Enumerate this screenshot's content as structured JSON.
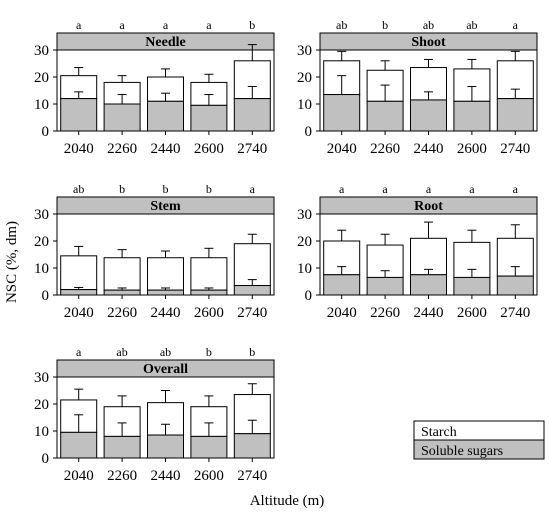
{
  "axis_titles": {
    "y": "NSC (%, dm)",
    "x": "Altitude (m)"
  },
  "legend": {
    "items": [
      {
        "label": "Starch",
        "color": "#ffffff"
      },
      {
        "label": "Soluble sugars",
        "color": "#c0c0c0"
      }
    ]
  },
  "colors": {
    "starch": "#ffffff",
    "soluble_sugars": "#c0c0c0",
    "strip": "#c0c0c0"
  },
  "chart_data": [
    {
      "type": "bar",
      "stacked": true,
      "title": "Needle",
      "categories": [
        "2040",
        "2260",
        "2440",
        "2600",
        "2740"
      ],
      "ylim": [
        0,
        30
      ],
      "yticks": [
        0,
        10,
        20,
        30
      ],
      "series": [
        {
          "name": "Soluble sugars",
          "values": [
            12,
            10,
            11,
            9.5,
            12
          ],
          "error": [
            2.5,
            3.5,
            3,
            4,
            4.5
          ]
        },
        {
          "name": "Starch",
          "values": [
            8.5,
            8,
            9,
            8.5,
            14
          ],
          "error": [
            3,
            2.5,
            3,
            3,
            6
          ]
        }
      ],
      "letters": [
        "a",
        "a",
        "a",
        "a",
        "b"
      ]
    },
    {
      "type": "bar",
      "stacked": true,
      "title": "Shoot",
      "categories": [
        "2040",
        "2260",
        "2440",
        "2600",
        "2740"
      ],
      "ylim": [
        0,
        30
      ],
      "yticks": [
        0,
        10,
        20,
        30
      ],
      "series": [
        {
          "name": "Soluble sugars",
          "values": [
            13.5,
            11,
            11.5,
            11,
            12
          ],
          "error": [
            7,
            6,
            3,
            5.5,
            3.5
          ]
        },
        {
          "name": "Starch",
          "values": [
            12.5,
            11.5,
            12,
            12,
            14
          ],
          "error": [
            3.5,
            3.5,
            3,
            3.5,
            3.5
          ]
        }
      ],
      "letters": [
        "ab",
        "b",
        "ab",
        "ab",
        "a"
      ]
    },
    {
      "type": "bar",
      "stacked": true,
      "title": "Stem",
      "categories": [
        "2040",
        "2260",
        "2440",
        "2600",
        "2740"
      ],
      "ylim": [
        0,
        30
      ],
      "yticks": [
        0,
        10,
        20,
        30
      ],
      "series": [
        {
          "name": "Soluble sugars",
          "values": [
            2,
            1.8,
            1.8,
            1.8,
            3.5
          ],
          "error": [
            0.8,
            0.8,
            0.8,
            0.8,
            2.2
          ]
        },
        {
          "name": "Starch",
          "values": [
            12.5,
            12,
            12,
            12,
            15.5
          ],
          "error": [
            3.5,
            3,
            2.5,
            3.5,
            3.5
          ]
        }
      ],
      "letters": [
        "ab",
        "b",
        "b",
        "b",
        "a"
      ]
    },
    {
      "type": "bar",
      "stacked": true,
      "title": "Root",
      "categories": [
        "2040",
        "2260",
        "2440",
        "2600",
        "2740"
      ],
      "ylim": [
        0,
        30
      ],
      "yticks": [
        0,
        10,
        20,
        30
      ],
      "series": [
        {
          "name": "Soluble sugars",
          "values": [
            7.5,
            6.5,
            7.5,
            6.5,
            7
          ],
          "error": [
            3,
            2.5,
            2,
            3,
            3.5
          ]
        },
        {
          "name": "Starch",
          "values": [
            12.5,
            12,
            13.5,
            13,
            14
          ],
          "error": [
            4,
            4,
            6,
            4.5,
            5
          ]
        }
      ],
      "letters": [
        "a",
        "a",
        "a",
        "a",
        "a"
      ]
    },
    {
      "type": "bar",
      "stacked": true,
      "title": "Overall",
      "categories": [
        "2040",
        "2260",
        "2440",
        "2600",
        "2740"
      ],
      "ylim": [
        0,
        30
      ],
      "yticks": [
        0,
        10,
        20,
        30
      ],
      "series": [
        {
          "name": "Soluble sugars",
          "values": [
            9.5,
            8,
            8.5,
            8,
            9
          ],
          "error": [
            6.5,
            5,
            4,
            5,
            5
          ]
        },
        {
          "name": "Starch",
          "values": [
            12,
            11,
            12,
            11,
            14.5
          ],
          "error": [
            4,
            4,
            4.5,
            4,
            4
          ]
        }
      ],
      "letters": [
        "a",
        "ab",
        "ab",
        "b",
        "b"
      ]
    }
  ]
}
